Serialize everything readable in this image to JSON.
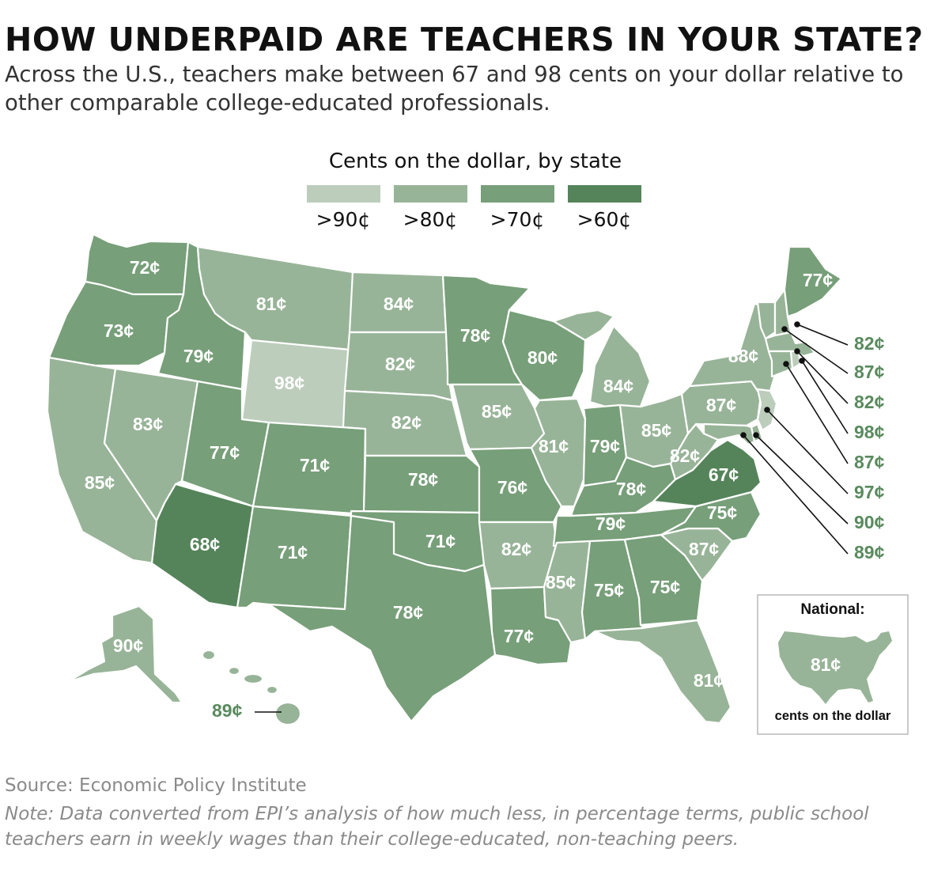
{
  "title": "HOW UNDERPAID ARE TEACHERS IN YOUR STATE?",
  "subtitle": "Across the U.S., teachers make between 67 and 98 cents on your dollar relative to other comparable college-educated professionals.",
  "legend": {
    "title": "Cents on the dollar, by state",
    "items": [
      {
        "label": ">90¢",
        "color": "#bccdbc"
      },
      {
        "label": ">80¢",
        "color": "#98b498"
      },
      {
        "label": ">70¢",
        "color": "#779f79"
      },
      {
        "label": ">60¢",
        "color": "#55845a"
      }
    ]
  },
  "states": [
    {
      "id": "WA",
      "label": "72¢",
      "value": 72
    },
    {
      "id": "OR",
      "label": "73¢",
      "value": 73
    },
    {
      "id": "CA",
      "label": "85¢",
      "value": 85
    },
    {
      "id": "NV",
      "label": "83¢",
      "value": 83
    },
    {
      "id": "ID",
      "label": "79¢",
      "value": 79
    },
    {
      "id": "MT",
      "label": "81¢",
      "value": 81
    },
    {
      "id": "WY",
      "label": "98¢",
      "value": 98
    },
    {
      "id": "UT",
      "label": "77¢",
      "value": 77
    },
    {
      "id": "AZ",
      "label": "68¢",
      "value": 68
    },
    {
      "id": "CO",
      "label": "71¢",
      "value": 71
    },
    {
      "id": "NM",
      "label": "71¢",
      "value": 71
    },
    {
      "id": "ND",
      "label": "84¢",
      "value": 84
    },
    {
      "id": "SD",
      "label": "82¢",
      "value": 82
    },
    {
      "id": "NE",
      "label": "82¢",
      "value": 82
    },
    {
      "id": "KS",
      "label": "78¢",
      "value": 78
    },
    {
      "id": "OK",
      "label": "71¢",
      "value": 71
    },
    {
      "id": "TX",
      "label": "78¢",
      "value": 78
    },
    {
      "id": "MN",
      "label": "78¢",
      "value": 78
    },
    {
      "id": "IA",
      "label": "85¢",
      "value": 85
    },
    {
      "id": "MO",
      "label": "76¢",
      "value": 76
    },
    {
      "id": "AR",
      "label": "82¢",
      "value": 82
    },
    {
      "id": "LA",
      "label": "77¢",
      "value": 77
    },
    {
      "id": "WI",
      "label": "80¢",
      "value": 80
    },
    {
      "id": "IL",
      "label": "81¢",
      "value": 81
    },
    {
      "id": "MI",
      "label": "84¢",
      "value": 84
    },
    {
      "id": "IN",
      "label": "79¢",
      "value": 79
    },
    {
      "id": "OH",
      "label": "85¢",
      "value": 85
    },
    {
      "id": "KY",
      "label": "78¢",
      "value": 78
    },
    {
      "id": "TN",
      "label": "79¢",
      "value": 79
    },
    {
      "id": "MS",
      "label": "85¢",
      "value": 85
    },
    {
      "id": "AL",
      "label": "75¢",
      "value": 75
    },
    {
      "id": "GA",
      "label": "75¢",
      "value": 75
    },
    {
      "id": "FL",
      "label": "81¢",
      "value": 81
    },
    {
      "id": "SC",
      "label": "87¢",
      "value": 87
    },
    {
      "id": "NC",
      "label": "75¢",
      "value": 75
    },
    {
      "id": "VA",
      "label": "67¢",
      "value": 67
    },
    {
      "id": "WV",
      "label": "82¢",
      "value": 82
    },
    {
      "id": "PA",
      "label": "87¢",
      "value": 87
    },
    {
      "id": "NY",
      "label": "88¢",
      "value": 88
    },
    {
      "id": "ME",
      "label": "77¢",
      "value": 77
    },
    {
      "id": "AK",
      "label": "90¢",
      "value": 90
    },
    {
      "id": "HI",
      "label": "89¢",
      "value": 89
    },
    {
      "id": "VT",
      "label": "82¢",
      "value": 82
    },
    {
      "id": "NH",
      "label": "87¢",
      "value": 87
    },
    {
      "id": "MA",
      "label": "82¢",
      "value": 82
    },
    {
      "id": "RI",
      "label": "98¢",
      "value": 98
    },
    {
      "id": "CT",
      "label": "87¢",
      "value": 87
    },
    {
      "id": "NJ",
      "label": "97¢",
      "value": 97
    },
    {
      "id": "DE",
      "label": "90¢",
      "value": 90
    },
    {
      "id": "MD",
      "label": "89¢",
      "value": 89
    }
  ],
  "national": {
    "title": "National:",
    "label": "81¢",
    "value": 81,
    "footer": "cents on the dollar"
  },
  "source": "Source: Economic Policy Institute",
  "note": "Note: Data converted from EPI’s analysis of how much less, in percentage terms, public school teachers earn in weekly wages than their college-educated, non-teaching peers.",
  "colors": {
    "callout_text": "#5a8a5e",
    "state_border": "#ffffff",
    "leader_line": "#111111"
  }
}
